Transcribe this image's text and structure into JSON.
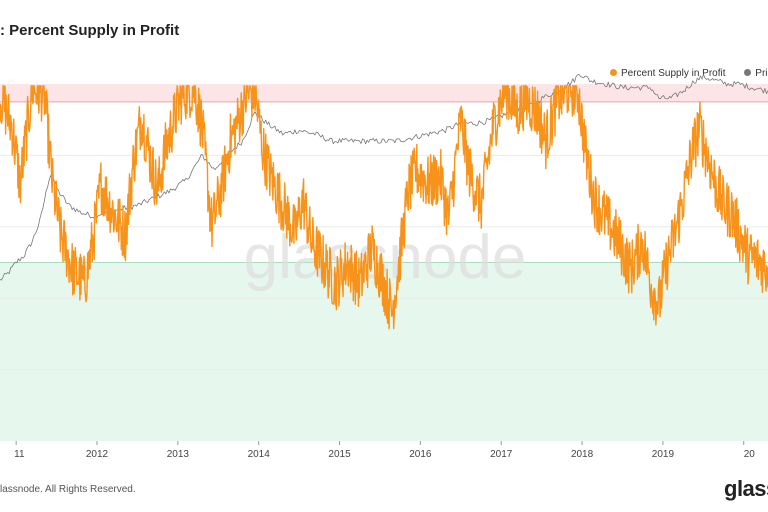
{
  "header": {
    "title": ": Percent Supply in Profit"
  },
  "legend": [
    {
      "label": "Percent Supply in Profit",
      "color": "#f7931a"
    },
    {
      "label": "Pri",
      "color": "#777777"
    }
  ],
  "watermark": "glassnode",
  "footer": {
    "copyright": "lassnode. All Rights Reserved.",
    "brand": "glass"
  },
  "chart_data": {
    "type": "line",
    "x_ticks": [
      "11",
      "2012",
      "2013",
      "2014",
      "2015",
      "2016",
      "2017",
      "2018",
      "2019",
      "20"
    ],
    "x_range": [
      2010.8,
      2020.3
    ],
    "ylim": [
      0,
      100
    ],
    "zones": [
      {
        "name": "high",
        "from": 95,
        "to": 100,
        "color": "#fde4e6"
      },
      {
        "name": "low",
        "from": 0,
        "to": 50,
        "color": "#e6f7ee"
      }
    ],
    "thresholds": [
      {
        "value": 95,
        "color": "#e8a5a8"
      },
      {
        "value": 50,
        "color": "#a8dcbd"
      }
    ],
    "series": [
      {
        "name": "Percent Supply in Profit",
        "color": "#f7931a",
        "anchors": [
          [
            2010.8,
            97
          ],
          [
            2010.95,
            88
          ],
          [
            2011.05,
            72
          ],
          [
            2011.2,
            99
          ],
          [
            2011.35,
            97
          ],
          [
            2011.45,
            72
          ],
          [
            2011.55,
            58
          ],
          [
            2011.7,
            48
          ],
          [
            2011.85,
            44
          ],
          [
            2011.95,
            56
          ],
          [
            2012.05,
            72
          ],
          [
            2012.2,
            64
          ],
          [
            2012.35,
            58
          ],
          [
            2012.45,
            78
          ],
          [
            2012.55,
            91
          ],
          [
            2012.65,
            80
          ],
          [
            2012.75,
            70
          ],
          [
            2012.85,
            82
          ],
          [
            2012.95,
            90
          ],
          [
            2013.05,
            97
          ],
          [
            2013.2,
            99
          ],
          [
            2013.3,
            88
          ],
          [
            2013.42,
            60
          ],
          [
            2013.55,
            72
          ],
          [
            2013.65,
            84
          ],
          [
            2013.75,
            90
          ],
          [
            2013.85,
            97
          ],
          [
            2013.95,
            98
          ],
          [
            2014.05,
            82
          ],
          [
            2014.15,
            74
          ],
          [
            2014.3,
            66
          ],
          [
            2014.45,
            58
          ],
          [
            2014.55,
            68
          ],
          [
            2014.65,
            56
          ],
          [
            2014.8,
            50
          ],
          [
            2014.95,
            44
          ],
          [
            2015.1,
            50
          ],
          [
            2015.25,
            44
          ],
          [
            2015.4,
            54
          ],
          [
            2015.55,
            44
          ],
          [
            2015.65,
            36
          ],
          [
            2015.75,
            52
          ],
          [
            2015.85,
            70
          ],
          [
            2015.95,
            76
          ],
          [
            2016.1,
            72
          ],
          [
            2016.25,
            74
          ],
          [
            2016.35,
            62
          ],
          [
            2016.5,
            90
          ],
          [
            2016.6,
            76
          ],
          [
            2016.75,
            66
          ],
          [
            2016.9,
            88
          ],
          [
            2017.05,
            99
          ],
          [
            2017.2,
            92
          ],
          [
            2017.3,
            96
          ],
          [
            2017.45,
            92
          ],
          [
            2017.55,
            84
          ],
          [
            2017.7,
            96
          ],
          [
            2017.85,
            99
          ],
          [
            2017.95,
            98
          ],
          [
            2018.05,
            80
          ],
          [
            2018.15,
            68
          ],
          [
            2018.3,
            62
          ],
          [
            2018.45,
            56
          ],
          [
            2018.6,
            48
          ],
          [
            2018.75,
            56
          ],
          [
            2018.85,
            44
          ],
          [
            2018.95,
            38
          ],
          [
            2019.05,
            50
          ],
          [
            2019.15,
            58
          ],
          [
            2019.25,
            68
          ],
          [
            2019.35,
            80
          ],
          [
            2019.45,
            88
          ],
          [
            2019.55,
            80
          ],
          [
            2019.65,
            72
          ],
          [
            2019.75,
            66
          ],
          [
            2019.85,
            64
          ],
          [
            2019.95,
            58
          ],
          [
            2020.05,
            52
          ],
          [
            2020.2,
            50
          ],
          [
            2020.3,
            48
          ]
        ]
      },
      {
        "name": "Pri",
        "color": "#777777",
        "anchors": [
          [
            2010.8,
            45
          ],
          [
            2010.9,
            47
          ],
          [
            2011.0,
            50
          ],
          [
            2011.1,
            52
          ],
          [
            2011.2,
            56
          ],
          [
            2011.3,
            62
          ],
          [
            2011.42,
            75
          ],
          [
            2011.52,
            70
          ],
          [
            2011.65,
            66
          ],
          [
            2011.8,
            64
          ],
          [
            2011.95,
            63
          ],
          [
            2012.1,
            64
          ],
          [
            2012.3,
            65
          ],
          [
            2012.5,
            66
          ],
          [
            2012.7,
            68
          ],
          [
            2012.9,
            70
          ],
          [
            2013.1,
            73
          ],
          [
            2013.3,
            80
          ],
          [
            2013.45,
            76
          ],
          [
            2013.6,
            80
          ],
          [
            2013.8,
            84
          ],
          [
            2013.95,
            92
          ],
          [
            2014.1,
            89
          ],
          [
            2014.3,
            86
          ],
          [
            2014.5,
            87
          ],
          [
            2014.7,
            86
          ],
          [
            2014.9,
            84
          ],
          [
            2015.1,
            84
          ],
          [
            2015.3,
            84
          ],
          [
            2015.5,
            84
          ],
          [
            2015.7,
            84
          ],
          [
            2015.9,
            85
          ],
          [
            2016.1,
            86
          ],
          [
            2016.3,
            87
          ],
          [
            2016.5,
            89
          ],
          [
            2016.7,
            89
          ],
          [
            2016.9,
            90
          ],
          [
            2017.1,
            92
          ],
          [
            2017.3,
            93
          ],
          [
            2017.5,
            96
          ],
          [
            2017.7,
            98
          ],
          [
            2017.9,
            101
          ],
          [
            2017.97,
            103
          ],
          [
            2018.1,
            101
          ],
          [
            2018.3,
            100
          ],
          [
            2018.5,
            99
          ],
          [
            2018.7,
            99
          ],
          [
            2018.85,
            99
          ],
          [
            2018.95,
            96
          ],
          [
            2019.1,
            96
          ],
          [
            2019.25,
            98
          ],
          [
            2019.4,
            101
          ],
          [
            2019.5,
            102
          ],
          [
            2019.65,
            101
          ],
          [
            2019.8,
            100
          ],
          [
            2019.95,
            100
          ],
          [
            2020.1,
            99
          ],
          [
            2020.3,
            98
          ]
        ]
      }
    ]
  }
}
